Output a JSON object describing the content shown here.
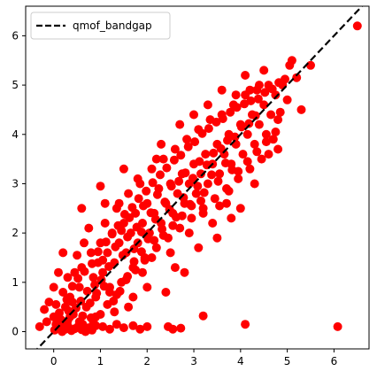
{
  "chart_data": {
    "type": "scatter",
    "title": "",
    "xlabel": "",
    "ylabel": "",
    "xlim": [
      -0.6,
      6.75
    ],
    "ylim": [
      -0.35,
      6.6
    ],
    "x_ticks": [
      0,
      1,
      2,
      3,
      4,
      5,
      6
    ],
    "y_ticks": [
      0,
      1,
      2,
      3,
      4,
      5,
      6
    ],
    "grid": false,
    "legend_position": "top-left",
    "reference_line": {
      "label": "qmof_bandgap",
      "style": "dashed",
      "color": "#000000",
      "from": [
        -0.6,
        -0.6
      ],
      "to": [
        6.75,
        6.75
      ]
    },
    "series": [
      {
        "color": "#ff0000",
        "points": [
          [
            0.02,
            0.03
          ],
          [
            0.1,
            0.08
          ],
          [
            0.18,
            0.0
          ],
          [
            0.25,
            0.05
          ],
          [
            0.3,
            0.12
          ],
          [
            0.38,
            0.02
          ],
          [
            0.45,
            0.06
          ],
          [
            0.52,
            0.1
          ],
          [
            0.6,
            0.04
          ],
          [
            0.68,
            0.0
          ],
          [
            0.75,
            0.08
          ],
          [
            0.82,
            0.03
          ],
          [
            0.9,
            0.12
          ],
          [
            0.15,
            0.25
          ],
          [
            0.35,
            0.3
          ],
          [
            0.55,
            0.2
          ],
          [
            0.8,
            0.28
          ],
          [
            1.05,
            0.1
          ],
          [
            1.2,
            0.05
          ],
          [
            1.35,
            0.15
          ],
          [
            1.5,
            0.08
          ],
          [
            1.7,
            0.12
          ],
          [
            1.85,
            0.05
          ],
          [
            2.0,
            0.1
          ],
          [
            2.45,
            0.1
          ],
          [
            2.55,
            0.05
          ],
          [
            2.72,
            0.07
          ],
          [
            3.2,
            0.32
          ],
          [
            4.1,
            0.15
          ],
          [
            6.08,
            0.1
          ],
          [
            -0.3,
            0.1
          ],
          [
            -0.15,
            0.2
          ],
          [
            -0.2,
            0.45
          ],
          [
            -0.1,
            0.6
          ],
          [
            0.0,
            0.9
          ],
          [
            0.05,
            0.55
          ],
          [
            0.2,
            0.8
          ],
          [
            0.3,
            1.1
          ],
          [
            0.4,
            0.6
          ],
          [
            0.25,
            0.5
          ],
          [
            0.55,
            0.9
          ],
          [
            0.6,
            1.3
          ],
          [
            0.7,
            0.5
          ],
          [
            0.5,
            1.55
          ],
          [
            0.45,
            1.2
          ],
          [
            0.8,
            1.6
          ],
          [
            0.85,
            1.1
          ],
          [
            0.95,
            1.4
          ],
          [
            0.9,
            0.7
          ],
          [
            1.0,
            1.8
          ],
          [
            1.05,
            1.2
          ],
          [
            1.1,
            2.2
          ],
          [
            1.15,
            1.6
          ],
          [
            1.2,
            0.9
          ],
          [
            1.25,
            2.0
          ],
          [
            1.3,
            1.4
          ],
          [
            1.35,
            2.5
          ],
          [
            1.4,
            1.8
          ],
          [
            1.45,
            1.0
          ],
          [
            1.5,
            2.2
          ],
          [
            1.55,
            1.6
          ],
          [
            1.6,
            2.8
          ],
          [
            1.65,
            2.0
          ],
          [
            1.7,
            1.3
          ],
          [
            1.75,
            2.4
          ],
          [
            1.8,
            1.8
          ],
          [
            1.85,
            3.0
          ],
          [
            1.9,
            2.2
          ],
          [
            1.95,
            1.5
          ],
          [
            2.0,
            2.6
          ],
          [
            2.05,
            2.0
          ],
          [
            2.1,
            3.3
          ],
          [
            2.15,
            2.4
          ],
          [
            2.2,
            1.7
          ],
          [
            2.25,
            2.9
          ],
          [
            2.3,
            2.2
          ],
          [
            2.35,
            3.5
          ],
          [
            2.4,
            2.6
          ],
          [
            2.45,
            1.9
          ],
          [
            2.5,
            3.0
          ],
          [
            2.55,
            2.4
          ],
          [
            2.6,
            3.7
          ],
          [
            2.65,
            2.8
          ],
          [
            2.7,
            2.1
          ],
          [
            2.75,
            3.2
          ],
          [
            2.8,
            2.6
          ],
          [
            2.85,
            3.9
          ],
          [
            2.9,
            3.0
          ],
          [
            2.95,
            2.3
          ],
          [
            3.0,
            3.4
          ],
          [
            3.05,
            2.8
          ],
          [
            3.1,
            4.1
          ],
          [
            3.15,
            3.2
          ],
          [
            3.2,
            2.5
          ],
          [
            3.25,
            3.6
          ],
          [
            3.3,
            3.0
          ],
          [
            3.35,
            4.3
          ],
          [
            3.4,
            3.4
          ],
          [
            3.45,
            2.7
          ],
          [
            3.5,
            3.8
          ],
          [
            3.55,
            3.2
          ],
          [
            3.6,
            4.4
          ],
          [
            3.65,
            3.6
          ],
          [
            3.7,
            2.9
          ],
          [
            3.75,
            4.0
          ],
          [
            3.8,
            3.4
          ],
          [
            3.85,
            4.6
          ],
          [
            3.9,
            3.8
          ],
          [
            3.95,
            3.1
          ],
          [
            4.0,
            4.2
          ],
          [
            4.05,
            3.6
          ],
          [
            4.1,
            4.8
          ],
          [
            4.15,
            4.0
          ],
          [
            4.2,
            3.3
          ],
          [
            4.25,
            4.4
          ],
          [
            4.3,
            3.8
          ],
          [
            4.35,
            4.9
          ],
          [
            4.4,
            4.2
          ],
          [
            4.45,
            3.5
          ],
          [
            4.5,
            4.6
          ],
          [
            4.55,
            4.0
          ],
          [
            4.6,
            5.0
          ],
          [
            4.65,
            4.4
          ],
          [
            4.7,
            3.9
          ],
          [
            4.75,
            4.8
          ],
          [
            4.8,
            4.3
          ],
          [
            4.9,
            5.0
          ],
          [
            5.0,
            4.7
          ],
          [
            5.05,
            5.4
          ],
          [
            5.1,
            5.5
          ],
          [
            5.2,
            5.15
          ],
          [
            5.3,
            4.5
          ],
          [
            5.5,
            5.4
          ],
          [
            6.5,
            6.2
          ],
          [
            4.1,
            5.2
          ],
          [
            4.5,
            5.3
          ],
          [
            0.6,
            2.5
          ],
          [
            1.0,
            2.95
          ],
          [
            1.5,
            3.3
          ],
          [
            2.2,
            3.5
          ],
          [
            2.0,
            0.9
          ],
          [
            2.4,
            0.8
          ],
          [
            2.8,
            1.2
          ],
          [
            3.1,
            1.7
          ],
          [
            3.5,
            1.9
          ],
          [
            3.8,
            2.3
          ],
          [
            4.0,
            2.5
          ],
          [
            1.6,
            0.5
          ],
          [
            1.3,
            0.4
          ],
          [
            2.6,
            1.3
          ],
          [
            0.1,
            1.2
          ],
          [
            0.2,
            1.6
          ],
          [
            0.0,
            0.3
          ],
          [
            0.35,
            0.7
          ],
          [
            0.65,
            1.8
          ],
          [
            0.75,
            2.1
          ],
          [
            1.1,
            2.6
          ],
          [
            1.4,
            2.6
          ],
          [
            1.8,
            3.1
          ],
          [
            2.3,
            3.8
          ],
          [
            2.7,
            4.2
          ],
          [
            3.0,
            4.4
          ],
          [
            3.3,
            4.6
          ],
          [
            3.6,
            4.9
          ],
          [
            3.9,
            4.8
          ],
          [
            4.2,
            4.9
          ],
          [
            4.4,
            5.0
          ],
          [
            3.4,
            2.2
          ],
          [
            3.7,
            2.6
          ],
          [
            4.3,
            3.0
          ],
          [
            4.6,
            3.6
          ],
          [
            4.8,
            3.7
          ],
          [
            1.9,
            1.2
          ],
          [
            2.1,
            1.5
          ],
          [
            2.5,
            1.6
          ],
          [
            2.9,
            2.0
          ],
          [
            3.2,
            2.4
          ],
          [
            1.2,
            0.8
          ],
          [
            0.9,
            0.3
          ],
          [
            1.7,
            0.7
          ],
          [
            1.45,
            2.05
          ],
          [
            1.62,
            2.31
          ],
          [
            1.78,
            2.12
          ],
          [
            1.92,
            2.55
          ],
          [
            2.08,
            2.41
          ],
          [
            2.22,
            2.78
          ],
          [
            2.38,
            2.63
          ],
          [
            2.52,
            2.95
          ],
          [
            2.68,
            3.05
          ],
          [
            2.82,
            3.22
          ],
          [
            2.98,
            3.11
          ],
          [
            3.12,
            3.45
          ],
          [
            3.28,
            3.38
          ],
          [
            3.42,
            3.62
          ],
          [
            3.58,
            3.71
          ],
          [
            3.72,
            3.88
          ],
          [
            3.88,
            3.95
          ],
          [
            4.02,
            4.15
          ],
          [
            4.18,
            4.22
          ],
          [
            4.32,
            4.38
          ],
          [
            1.05,
            1.45
          ],
          [
            1.18,
            1.32
          ],
          [
            1.32,
            1.72
          ],
          [
            1.48,
            1.55
          ],
          [
            1.58,
            1.92
          ],
          [
            1.72,
            1.68
          ],
          [
            1.88,
            2.02
          ],
          [
            2.02,
            1.88
          ],
          [
            2.18,
            2.28
          ],
          [
            2.32,
            2.08
          ],
          [
            2.48,
            2.48
          ],
          [
            2.62,
            2.32
          ],
          [
            2.78,
            2.72
          ],
          [
            2.92,
            2.58
          ],
          [
            3.08,
            2.95
          ],
          [
            3.22,
            2.82
          ],
          [
            3.38,
            3.18
          ],
          [
            3.52,
            3.05
          ],
          [
            3.68,
            3.42
          ],
          [
            3.82,
            3.28
          ],
          [
            0.42,
            0.35
          ],
          [
            0.58,
            0.62
          ],
          [
            0.72,
            0.82
          ],
          [
            0.88,
            0.95
          ],
          [
            1.02,
            1.05
          ],
          [
            0.48,
            0.48
          ],
          [
            0.62,
            0.32
          ],
          [
            0.78,
            0.58
          ],
          [
            0.92,
            0.78
          ],
          [
            1.08,
            0.92
          ],
          [
            0.22,
            0.18
          ],
          [
            0.32,
            0.42
          ],
          [
            0.12,
            0.38
          ],
          [
            0.05,
            0.15
          ],
          [
            0.28,
            0.65
          ],
          [
            0.4,
            0.92
          ],
          [
            0.52,
            1.08
          ],
          [
            0.66,
            1.22
          ],
          [
            0.82,
            1.38
          ],
          [
            0.95,
            1.62
          ],
          [
            1.12,
            1.82
          ],
          [
            1.25,
            1.98
          ],
          [
            1.38,
            2.15
          ],
          [
            1.52,
            2.38
          ],
          [
            1.68,
            2.52
          ],
          [
            1.82,
            2.7
          ],
          [
            1.98,
            2.85
          ],
          [
            2.12,
            3.02
          ],
          [
            2.28,
            3.18
          ],
          [
            2.42,
            3.32
          ],
          [
            2.58,
            3.48
          ],
          [
            2.72,
            3.58
          ],
          [
            2.88,
            3.75
          ],
          [
            3.02,
            3.85
          ],
          [
            3.18,
            4.02
          ],
          [
            3.32,
            4.12
          ],
          [
            3.48,
            4.25
          ],
          [
            3.62,
            4.32
          ],
          [
            3.78,
            4.45
          ],
          [
            3.92,
            4.55
          ],
          [
            4.08,
            4.62
          ],
          [
            4.22,
            4.68
          ],
          [
            4.38,
            4.72
          ],
          [
            4.52,
            4.85
          ],
          [
            4.68,
            4.92
          ],
          [
            4.82,
            5.05
          ],
          [
            4.95,
            5.12
          ],
          [
            3.55,
            2.55
          ],
          [
            3.75,
            2.85
          ],
          [
            3.95,
            3.25
          ],
          [
            4.15,
            3.45
          ],
          [
            4.35,
            3.65
          ],
          [
            4.55,
            3.85
          ],
          [
            4.75,
            4.05
          ],
          [
            4.85,
            4.45
          ],
          [
            1.35,
            0.75
          ],
          [
            1.55,
            1.05
          ],
          [
            1.75,
            1.25
          ],
          [
            1.95,
            1.45
          ],
          [
            2.15,
            1.85
          ],
          [
            2.35,
            1.95
          ],
          [
            2.55,
            2.15
          ],
          [
            2.75,
            2.35
          ],
          [
            2.95,
            2.55
          ],
          [
            3.15,
            2.65
          ],
          [
            0.3,
            0.22
          ],
          [
            0.62,
            0.15
          ],
          [
            0.85,
            0.2
          ],
          [
            1.0,
            0.35
          ],
          [
            1.15,
            0.55
          ],
          [
            1.28,
            0.62
          ],
          [
            1.42,
            0.82
          ],
          [
            1.58,
            1.12
          ],
          [
            1.72,
            1.42
          ],
          [
            1.88,
            1.62
          ]
        ]
      }
    ]
  }
}
